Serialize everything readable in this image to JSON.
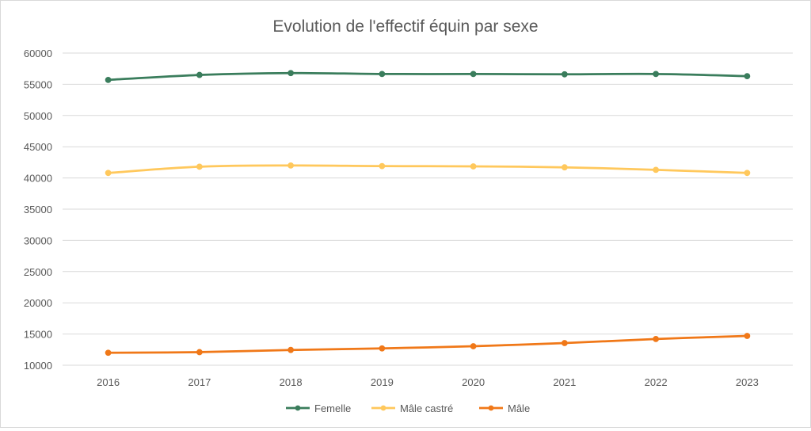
{
  "chart_data": {
    "type": "line",
    "title": "Evolution de l'effectif équin par sexe",
    "xlabel": "",
    "ylabel": "",
    "categories": [
      "2016",
      "2017",
      "2018",
      "2019",
      "2020",
      "2021",
      "2022",
      "2023"
    ],
    "ylim": [
      10000,
      60000
    ],
    "yticks": [
      "10000",
      "15000",
      "20000",
      "25000",
      "30000",
      "35000",
      "40000",
      "45000",
      "50000",
      "55000",
      "60000"
    ],
    "grid": true,
    "legend_position": "bottom",
    "series": [
      {
        "name": "Femelle",
        "color": "#3a7d5c",
        "values": [
          55700,
          56500,
          56800,
          56650,
          56650,
          56600,
          56650,
          56300
        ]
      },
      {
        "name": "Mâle castré",
        "color": "#ffc85c",
        "values": [
          40800,
          41800,
          42000,
          41900,
          41850,
          41700,
          41300,
          40800
        ]
      },
      {
        "name": "Mâle",
        "color": "#f07818",
        "values": [
          12000,
          12100,
          12450,
          12700,
          13050,
          13550,
          14200,
          14700
        ]
      }
    ]
  }
}
